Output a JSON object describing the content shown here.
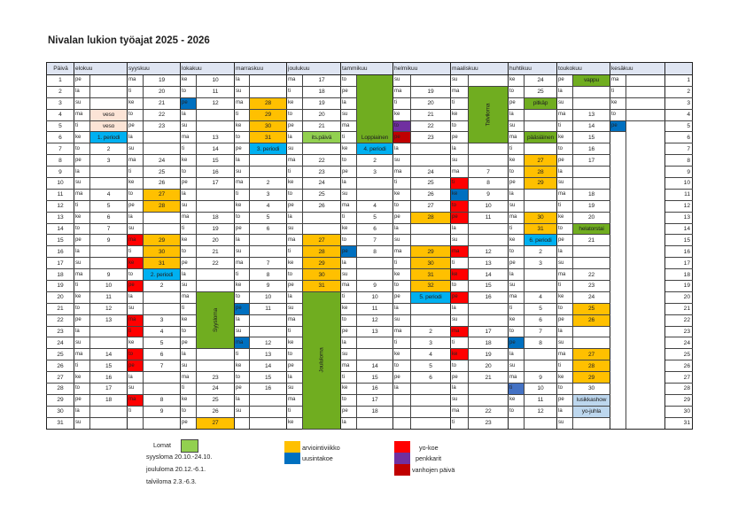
{
  "title": "Nivalan lukion työajat 2025 - 2026",
  "day_header": "Päivä",
  "colors": {
    "o": "#ffc000",
    "r": "#ff0000",
    "b": "#0070c0",
    "lb": "#00b0f0",
    "g": "#70ad20",
    "lg": "#92d050",
    "p": "#7030a0",
    "dr": "#c00000",
    "pk": "#fce4d6",
    "pb": "#bdd7ee",
    "mb": "#4472c4"
  },
  "months": [
    {
      "name": "elokuu",
      "wd": [
        "pe",
        "la",
        "su",
        "ma",
        "ti",
        "ke",
        "to",
        "pe",
        "la",
        "su",
        "ma",
        "ti",
        "ke",
        "to",
        "pe",
        "la",
        "su",
        "ma",
        "ti",
        "ke",
        "to",
        "pe",
        "la",
        "su",
        "ma",
        "ti",
        "ke",
        "to",
        "pe",
        "la",
        "su"
      ],
      "day": [
        "",
        "",
        "",
        "veso",
        "veso",
        "1. periodi",
        "2",
        "3",
        "",
        "",
        "4",
        "5",
        "6",
        "7",
        "9",
        "",
        "",
        "9",
        "10",
        "11",
        "12",
        "13",
        "",
        "",
        "14",
        "15",
        "16",
        "17",
        "18",
        "",
        ""
      ],
      "wd_color": {},
      "day_color": {
        "4": "pk",
        "5": "pk",
        "6": "lb"
      }
    },
    {
      "name": "syyskuu",
      "wd": [
        "ma",
        "ti",
        "ke",
        "to",
        "pe",
        "la",
        "su",
        "ma",
        "ti",
        "ke",
        "to",
        "pe",
        "la",
        "su",
        "ma",
        "ti",
        "ke",
        "to",
        "pe",
        "la",
        "su",
        "ma",
        "ti",
        "ke",
        "to",
        "pe",
        "la",
        "su",
        "ma",
        "ti",
        ""
      ],
      "day": [
        "19",
        "20",
        "21",
        "22",
        "23",
        "",
        "",
        "24",
        "25",
        "26",
        "27",
        "28",
        "",
        "",
        "29",
        "30",
        "31",
        "2. periodi",
        "2",
        "",
        "",
        "3",
        "4",
        "5",
        "6",
        "7",
        "",
        "",
        "8",
        "9",
        ""
      ],
      "wd_color": {
        "15": "r",
        "17": "r",
        "19": "r",
        "22": "r",
        "23": "r",
        "25": "r",
        "26": "r",
        "29": "r"
      },
      "day_color": {
        "11": "o",
        "12": "o",
        "15": "o",
        "16": "o",
        "17": "o",
        "18": "lb"
      }
    },
    {
      "name": "lokakuu",
      "wd": [
        "ke",
        "to",
        "pe",
        "la",
        "su",
        "ma",
        "ti",
        "ke",
        "to",
        "pe",
        "la",
        "su",
        "ma",
        "ti",
        "ke",
        "to",
        "pe",
        "la",
        "su",
        "ma",
        "ti",
        "ke",
        "to",
        "pe",
        "la",
        "su",
        "ma",
        "ti",
        "ke",
        "to",
        "pe"
      ],
      "day": [
        "10",
        "11",
        "12",
        "",
        "",
        "13",
        "14",
        "15",
        "16",
        "17",
        "",
        "",
        "18",
        "19",
        "20",
        "21",
        "22",
        "",
        "",
        "",
        "",
        "",
        "",
        "",
        "",
        "",
        "23",
        "24",
        "25",
        "26",
        "27"
      ],
      "wd_color": {
        "3": "b"
      },
      "day_color": {
        "31": "o"
      },
      "merge": {
        "start": 20,
        "end": 24,
        "label": "Syysloma",
        "vertical": true
      }
    },
    {
      "name": "marraskuu",
      "wd": [
        "la",
        "su",
        "ma",
        "ti",
        "ke",
        "to",
        "pe",
        "la",
        "su",
        "ma",
        "ti",
        "ke",
        "to",
        "pe",
        "la",
        "su",
        "ma",
        "ti",
        "ke",
        "to",
        "pe",
        "la",
        "su",
        "ma",
        "ti",
        "ke",
        "to",
        "pe",
        "la",
        "su",
        ""
      ],
      "day": [
        "",
        "",
        "28",
        "29",
        "30",
        "31",
        "3. periodi",
        "",
        "",
        "2",
        "3",
        "4",
        "5",
        "6",
        "",
        "",
        "7",
        "8",
        "9",
        "10",
        "11",
        "",
        "",
        "12",
        "13",
        "14",
        "15",
        "16",
        "",
        "",
        ""
      ],
      "wd_color": {
        "21": "b",
        "24": "b"
      },
      "day_color": {
        "3": "o",
        "4": "o",
        "5": "o",
        "6": "o",
        "7": "lb"
      }
    },
    {
      "name": "joulukuu",
      "wd": [
        "ma",
        "ti",
        "ke",
        "to",
        "pe",
        "la",
        "su",
        "ma",
        "ti",
        "ke",
        "to",
        "pe",
        "la",
        "su",
        "ma",
        "ti",
        "ke",
        "to",
        "pe",
        "la",
        "su",
        "ma",
        "ti",
        "ke",
        "to",
        "pe",
        "la",
        "su",
        "ma",
        "ti",
        "ke"
      ],
      "day": [
        "17",
        "18",
        "19",
        "20",
        "21",
        "its.päivä",
        "",
        "22",
        "23",
        "24",
        "25",
        "26",
        "",
        "",
        "27",
        "28",
        "29",
        "30",
        "31",
        "",
        "",
        "",
        "",
        "",
        "",
        "",
        "",
        "",
        "",
        "",
        ""
      ],
      "wd_color": {},
      "day_color": {
        "6": "lg",
        "15": "o",
        "16": "o",
        "17": "o",
        "18": "o",
        "19": "o"
      },
      "merge": {
        "start": 20,
        "end": 31,
        "label": "Joululoma",
        "vertical": true
      }
    },
    {
      "name": "tammikuu",
      "wd": [
        "to",
        "pe",
        "la",
        "su",
        "ma",
        "ti",
        "ke",
        "to",
        "pe",
        "la",
        "su",
        "ma",
        "ti",
        "ke",
        "to",
        "pe",
        "la",
        "su",
        "ma",
        "ti",
        "ke",
        "to",
        "pe",
        "la",
        "su",
        "ma",
        "ti",
        "ke",
        "to",
        "pe",
        "la"
      ],
      "day": [
        "",
        "",
        "",
        "",
        "",
        "",
        "4. periodi",
        "2",
        "3",
        "",
        "",
        "4",
        "5",
        "6",
        "7",
        "8",
        "",
        "",
        "9",
        "10",
        "11",
        "12",
        "13",
        "",
        "",
        "14",
        "15",
        "16",
        "17",
        "18",
        ""
      ],
      "wd_color": {
        "16": "b"
      },
      "day_color": {
        "7": "lb"
      },
      "merge": {
        "start": 1,
        "end": 6,
        "label": "Loppiainen",
        "vertical": false
      }
    },
    {
      "name": "helmikuu",
      "wd": [
        "su",
        "ma",
        "ti",
        "ke",
        "to",
        "pe",
        "la",
        "su",
        "ma",
        "ti",
        "ke",
        "to",
        "pe",
        "la",
        "su",
        "ma",
        "ti",
        "ke",
        "to",
        "pe",
        "la",
        "su",
        "ma",
        "ti",
        "ke",
        "to",
        "pe",
        "la",
        "",
        "",
        ""
      ],
      "day": [
        "",
        "19",
        "20",
        "21",
        "22",
        "23",
        "",
        "",
        "24",
        "25",
        "26",
        "27",
        "28",
        "",
        "",
        "29",
        "30",
        "31",
        "32",
        "5. periodi",
        "",
        "",
        "2",
        "3",
        "4",
        "5",
        "6",
        "",
        "",
        "",
        ""
      ],
      "wd_color": {
        "5": "p",
        "6": "dr"
      },
      "day_color": {
        "13": "o",
        "16": "o",
        "17": "o",
        "18": "o",
        "19": "o",
        "20": "lb"
      }
    },
    {
      "name": "maaliskuu",
      "wd": [
        "su",
        "ma",
        "ti",
        "ke",
        "to",
        "pe",
        "la",
        "su",
        "ma",
        "ti",
        "ke",
        "to",
        "pe",
        "la",
        "su",
        "ma",
        "ti",
        "ke",
        "to",
        "pe",
        "la",
        "su",
        "ma",
        "ti",
        "ke",
        "to",
        "pe",
        "la",
        "su",
        "ma",
        "ti"
      ],
      "day": [
        "",
        "",
        "",
        "",
        "",
        "",
        "",
        "",
        "7",
        "8",
        "9",
        "10",
        "11",
        "",
        "",
        "12",
        "13",
        "14",
        "15",
        "16",
        "",
        "",
        "17",
        "18",
        "19",
        "20",
        "21",
        "",
        "",
        "22",
        "23"
      ],
      "wd_color": {
        "10": "r",
        "11": "b",
        "12": "r",
        "13": "r",
        "16": "r",
        "18": "r",
        "20": "r",
        "23": "r",
        "25": "r"
      },
      "day_color": {},
      "merge": {
        "start": 2,
        "end": 6,
        "label": "Talviloma",
        "vertical": true
      }
    },
    {
      "name": "huhtikuu",
      "wd": [
        "ke",
        "to",
        "pe",
        "la",
        "su",
        "ma",
        "ti",
        "ke",
        "to",
        "pe",
        "la",
        "su",
        "ma",
        "ti",
        "ke",
        "to",
        "pe",
        "la",
        "su",
        "ma",
        "ti",
        "ke",
        "to",
        "pe",
        "la",
        "su",
        "ma",
        "ti",
        "ke",
        "to",
        ""
      ],
      "day": [
        "24",
        "25",
        "pitkäp",
        "",
        "",
        "pääsiäinen",
        "",
        "27",
        "28",
        "29",
        "",
        "",
        "30",
        "31",
        "6. periodi",
        "2",
        "3",
        "",
        "",
        "4",
        "5",
        "6",
        "7",
        "8",
        "",
        "",
        "9",
        "10",
        "11",
        "12",
        ""
      ],
      "wd_color": {
        "24": "b",
        "28": "mb"
      },
      "day_color": {
        "3": "g",
        "6": "g",
        "8": "o",
        "9": "o",
        "10": "o",
        "13": "o",
        "14": "o",
        "15": "lb"
      }
    },
    {
      "name": "toukokuu",
      "wd": [
        "pe",
        "la",
        "su",
        "ma",
        "ti",
        "ke",
        "to",
        "pe",
        "la",
        "su",
        "ma",
        "ti",
        "ke",
        "to",
        "pe",
        "la",
        "su",
        "ma",
        "ti",
        "ke",
        "to",
        "pe",
        "la",
        "su",
        "ma",
        "ti",
        "ke",
        "to",
        "pe",
        "la",
        "su"
      ],
      "day": [
        "vappu",
        "",
        "",
        "13",
        "14",
        "15",
        "16",
        "17",
        "",
        "",
        "18",
        "19",
        "20",
        "helatorstai",
        "21",
        "",
        "",
        "22",
        "23",
        "24",
        "25",
        "26",
        "",
        "",
        "27",
        "28",
        "29",
        "30",
        "lusikkashow",
        "yo-juhla",
        ""
      ],
      "wd_color": {},
      "day_color": {
        "1": "g",
        "14": "g",
        "21": "o",
        "22": "o",
        "25": "o",
        "26": "o",
        "27": "o",
        "29": "pb",
        "30": "pb"
      }
    },
    {
      "name": "kesäkuu",
      "wd": [
        "ma",
        "ti",
        "ke",
        "to",
        "pe",
        "",
        "",
        "",
        "",
        "",
        "",
        "",
        "",
        "",
        "",
        "",
        "",
        "",
        "",
        "",
        "",
        "",
        "",
        "",
        "",
        "",
        "",
        "",
        "",
        "",
        ""
      ],
      "day": [
        "",
        "",
        "",
        "",
        "",
        "",
        "",
        "",
        "",
        "",
        "",
        "",
        "",
        "",
        "",
        "",
        "",
        "",
        "",
        "",
        "",
        "",
        "",
        "",
        "",
        "",
        "",
        "",
        "",
        "",
        ""
      ],
      "wd_color": {
        "5": "b"
      },
      "day_color": {},
      "grid_rows": 4
    }
  ],
  "legend": {
    "lomat": "Lomat",
    "syysloma": "syysloma 20.10.-24.10.",
    "joululoma": "joululoma 20.12.-6.1.",
    "talviloma": "talviloma 2.3.-6.3.",
    "arviointiviikko": "arviointiviikko",
    "uusintakoe": "uusintakoe",
    "yokoe": "yo-koe",
    "penkkarit": "penkkarit",
    "vanhojen": "vanhojen päivä"
  }
}
